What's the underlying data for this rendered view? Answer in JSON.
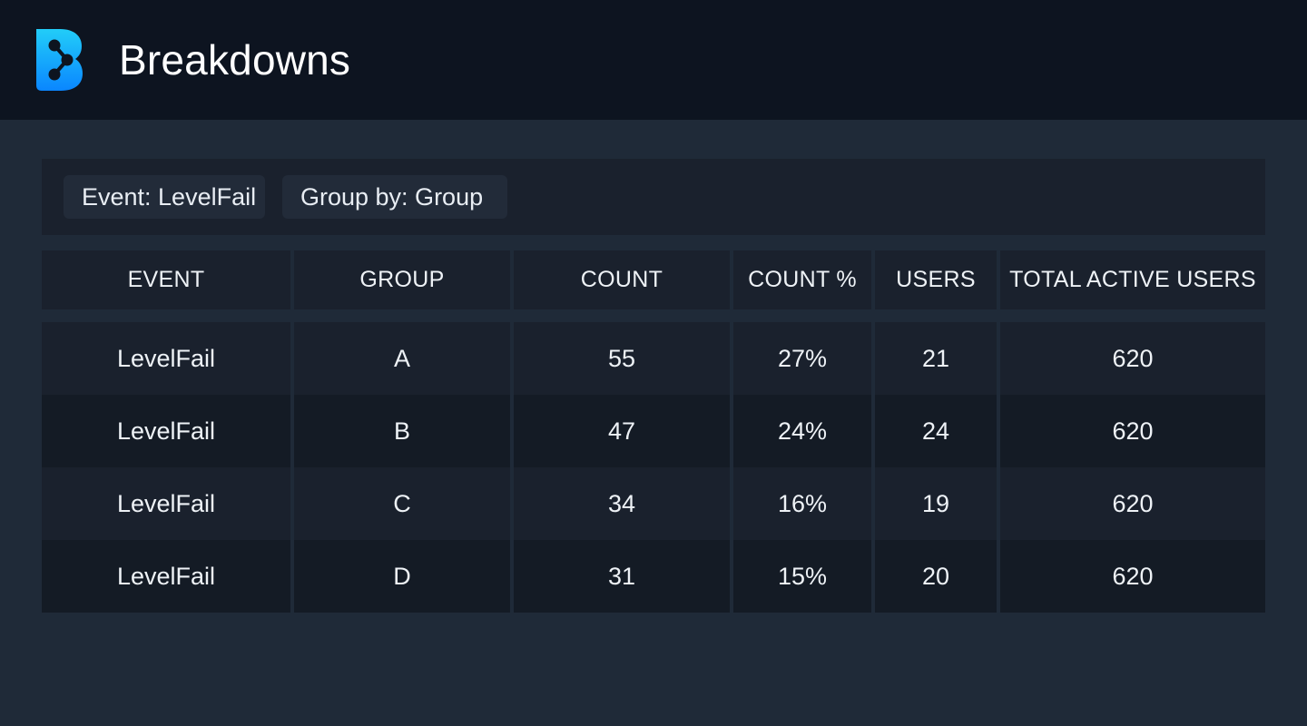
{
  "header": {
    "title": "Breakdowns",
    "logo_icon": "bitrise-b-logo-icon",
    "logo_colors": [
      "#20c6f7",
      "#0a84ff"
    ]
  },
  "filters": {
    "event_label": "Event: LevelFail",
    "group_label": "Group by: Group"
  },
  "table": {
    "columns": [
      "EVENT",
      "GROUP",
      "COUNT",
      "COUNT %",
      "USERS",
      "TOTAL ACTIVE USERS"
    ],
    "rows": [
      [
        "LevelFail",
        "A",
        "55",
        "27%",
        "21",
        "620"
      ],
      [
        "LevelFail",
        "B",
        "47",
        "24%",
        "24",
        "620"
      ],
      [
        "LevelFail",
        "C",
        "34",
        "16%",
        "19",
        "620"
      ],
      [
        "LevelFail",
        "D",
        "31",
        "15%",
        "20",
        "620"
      ]
    ]
  }
}
